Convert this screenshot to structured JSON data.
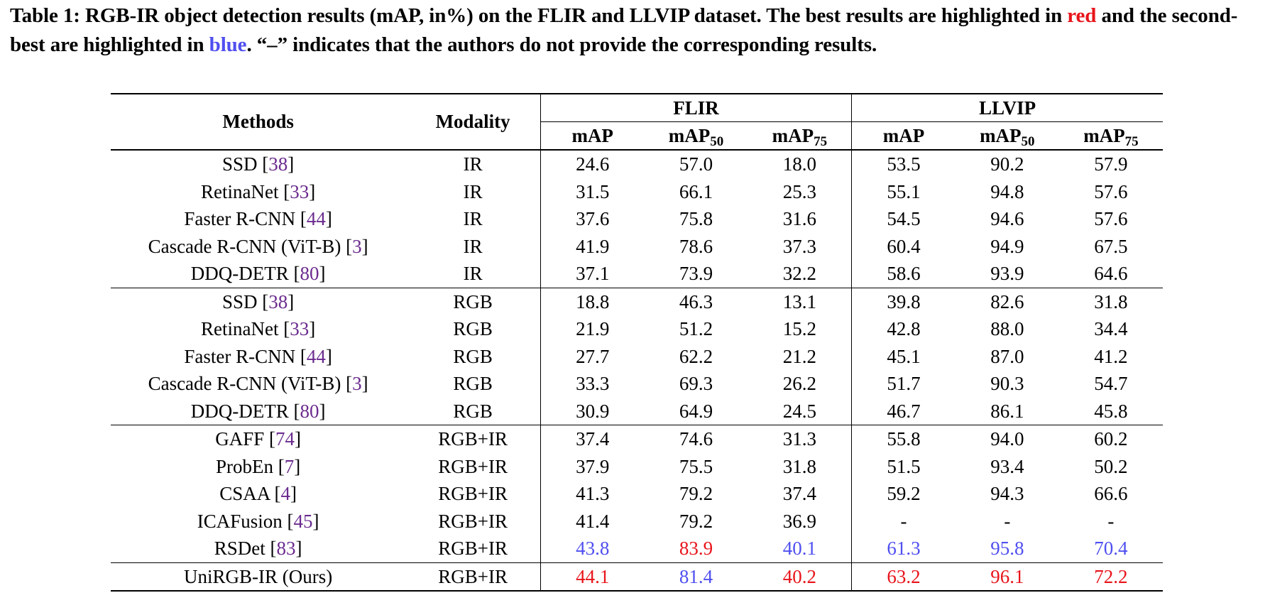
{
  "caption": {
    "part1": "Table 1: RGB-IR object detection results (mAP, in%) on the FLIR and LLVIP dataset. The best results are highlighted in ",
    "red_word": "red",
    "part2": " and the second-best are highlighted in ",
    "blue_word": "blue",
    "part3": ". “–” indicates that the authors do not provide the corresponding results."
  },
  "colors": {
    "best": "#e8141b",
    "second": "#4f4ff0",
    "citation": "#6b2b8e"
  },
  "header": {
    "methods": "Methods",
    "modality": "Modality",
    "flir": "FLIR",
    "llvip": "LLVIP",
    "metric_map": "mAP",
    "metric_map_base": "mAP",
    "sub50": "50",
    "sub75": "75"
  },
  "groups": [
    {
      "rows": [
        {
          "method": "SSD",
          "ref": "38",
          "modality": "IR",
          "values": [
            "24.6",
            "57.0",
            "18.0",
            "53.5",
            "90.2",
            "57.9"
          ],
          "marks": [
            "",
            "",
            "",
            "",
            "",
            ""
          ]
        },
        {
          "method": "RetinaNet",
          "ref": "33",
          "modality": "IR",
          "values": [
            "31.5",
            "66.1",
            "25.3",
            "55.1",
            "94.8",
            "57.6"
          ],
          "marks": [
            "",
            "",
            "",
            "",
            "",
            ""
          ]
        },
        {
          "method": "Faster R-CNN",
          "ref": "44",
          "modality": "IR",
          "values": [
            "37.6",
            "75.8",
            "31.6",
            "54.5",
            "94.6",
            "57.6"
          ],
          "marks": [
            "",
            "",
            "",
            "",
            "",
            ""
          ]
        },
        {
          "method": "Cascade R-CNN (ViT-B)",
          "ref": "3",
          "modality": "IR",
          "values": [
            "41.9",
            "78.6",
            "37.3",
            "60.4",
            "94.9",
            "67.5"
          ],
          "marks": [
            "",
            "",
            "",
            "",
            "",
            ""
          ]
        },
        {
          "method": "DDQ-DETR",
          "ref": "80",
          "modality": "IR",
          "values": [
            "37.1",
            "73.9",
            "32.2",
            "58.6",
            "93.9",
            "64.6"
          ],
          "marks": [
            "",
            "",
            "",
            "",
            "",
            ""
          ]
        }
      ]
    },
    {
      "rows": [
        {
          "method": "SSD",
          "ref": "38",
          "modality": "RGB",
          "values": [
            "18.8",
            "46.3",
            "13.1",
            "39.8",
            "82.6",
            "31.8"
          ],
          "marks": [
            "",
            "",
            "",
            "",
            "",
            ""
          ]
        },
        {
          "method": "RetinaNet",
          "ref": "33",
          "modality": "RGB",
          "values": [
            "21.9",
            "51.2",
            "15.2",
            "42.8",
            "88.0",
            "34.4"
          ],
          "marks": [
            "",
            "",
            "",
            "",
            "",
            ""
          ]
        },
        {
          "method": "Faster R-CNN",
          "ref": "44",
          "modality": "RGB",
          "values": [
            "27.7",
            "62.2",
            "21.2",
            "45.1",
            "87.0",
            "41.2"
          ],
          "marks": [
            "",
            "",
            "",
            "",
            "",
            ""
          ]
        },
        {
          "method": "Cascade R-CNN (ViT-B)",
          "ref": "3",
          "modality": "RGB",
          "values": [
            "33.3",
            "69.3",
            "26.2",
            "51.7",
            "90.3",
            "54.7"
          ],
          "marks": [
            "",
            "",
            "",
            "",
            "",
            ""
          ]
        },
        {
          "method": "DDQ-DETR",
          "ref": "80",
          "modality": "RGB",
          "values": [
            "30.9",
            "64.9",
            "24.5",
            "46.7",
            "86.1",
            "45.8"
          ],
          "marks": [
            "",
            "",
            "",
            "",
            "",
            ""
          ]
        }
      ]
    },
    {
      "rows": [
        {
          "method": "GAFF",
          "ref": "74",
          "modality": "RGB+IR",
          "values": [
            "37.4",
            "74.6",
            "31.3",
            "55.8",
            "94.0",
            "60.2"
          ],
          "marks": [
            "",
            "",
            "",
            "",
            "",
            ""
          ]
        },
        {
          "method": "ProbEn",
          "ref": "7",
          "modality": "RGB+IR",
          "values": [
            "37.9",
            "75.5",
            "31.8",
            "51.5",
            "93.4",
            "50.2"
          ],
          "marks": [
            "",
            "",
            "",
            "",
            "",
            ""
          ]
        },
        {
          "method": "CSAA",
          "ref": "4",
          "modality": "RGB+IR",
          "values": [
            "41.3",
            "79.2",
            "37.4",
            "59.2",
            "94.3",
            "66.6"
          ],
          "marks": [
            "",
            "",
            "",
            "",
            "",
            ""
          ]
        },
        {
          "method": "ICAFusion",
          "ref": "45",
          "modality": "RGB+IR",
          "values": [
            "41.4",
            "79.2",
            "36.9",
            "-",
            "-",
            "-"
          ],
          "marks": [
            "",
            "",
            "",
            "",
            "",
            ""
          ]
        },
        {
          "method": "RSDet",
          "ref": "83",
          "modality": "RGB+IR",
          "values": [
            "43.8",
            "83.9",
            "40.1",
            "61.3",
            "95.8",
            "70.4"
          ],
          "marks": [
            "second",
            "best",
            "second",
            "second",
            "second",
            "second"
          ]
        }
      ]
    },
    {
      "rows": [
        {
          "method": "UniRGB-IR (Ours)",
          "ref": "",
          "modality": "RGB+IR",
          "values": [
            "44.1",
            "81.4",
            "40.2",
            "63.2",
            "96.1",
            "72.2"
          ],
          "marks": [
            "best",
            "second",
            "best",
            "best",
            "best",
            "best"
          ]
        }
      ]
    }
  ]
}
